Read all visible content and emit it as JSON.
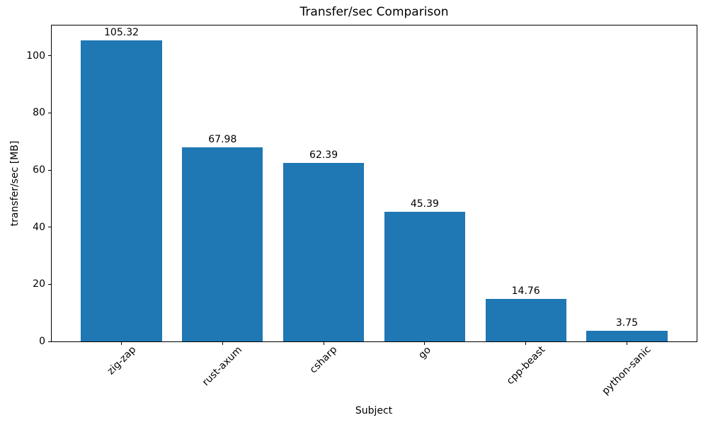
{
  "figure": {
    "title": "Transfer/sec Comparison",
    "xlabel": "Subject",
    "ylabel": "transfer/sec [MB]"
  },
  "chart_data": {
    "type": "bar",
    "title": "Transfer/sec Comparison",
    "xlabel": "Subject",
    "ylabel": "transfer/sec [MB]",
    "categories": [
      "zig-zap",
      "rust-axum",
      "csharp",
      "go",
      "cpp-beast",
      "python-sanic"
    ],
    "values": [
      105.32,
      67.98,
      62.39,
      45.39,
      14.76,
      3.75
    ],
    "value_labels": [
      "105.32",
      "67.98",
      "62.39",
      "45.39",
      "14.76",
      "3.75"
    ],
    "yticks": [
      0,
      20,
      40,
      60,
      80,
      100
    ],
    "ylim": [
      0,
      110.59
    ],
    "bar_width_frac": 0.8,
    "x_margin_frac": 0.05,
    "bar_color": "#1f77b4",
    "axis_color": "#000000",
    "grid": false,
    "legend_position": "none",
    "x_tick_rotation_deg": 45
  }
}
